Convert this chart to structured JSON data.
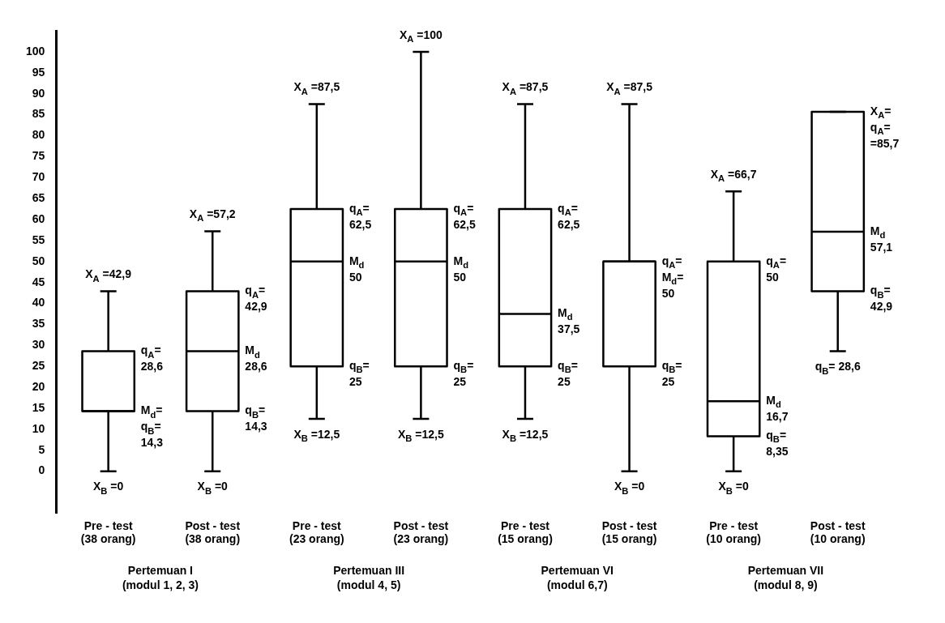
{
  "chart_data": {
    "type": "box",
    "color": "#000000",
    "categories": [
      "Pre - test\n(38 orang)",
      "Post - test\n(38 orang)",
      "Pre - test\n(23 orang)",
      "Post - test\n(23 orang)",
      "Pre - test\n(15 orang)",
      "Post - test\n(15 orang)",
      "Pre - test\n(10 orang)",
      "Post - test\n(10 orang)"
    ],
    "boxes": [
      {
        "low": 0,
        "q1": 14.3,
        "median": 14.3,
        "q3": 28.6,
        "high": 42.9
      },
      {
        "low": 0,
        "q1": 14.3,
        "median": 28.6,
        "q3": 42.9,
        "high": 57.2
      },
      {
        "low": 12.5,
        "q1": 25,
        "median": 50,
        "q3": 62.5,
        "high": 87.5
      },
      {
        "low": 12.5,
        "q1": 25,
        "median": 50,
        "q3": 62.5,
        "high": 100
      },
      {
        "low": 12.5,
        "q1": 25,
        "median": 37.5,
        "q3": 62.5,
        "high": 87.5
      },
      {
        "low": 0,
        "q1": 25,
        "median": 50,
        "q3": 50,
        "high": 87.5
      },
      {
        "low": 0,
        "q1": 8.35,
        "median": 16.7,
        "q3": 50,
        "high": 66.7
      },
      {
        "low": 28.6,
        "q1": 42.9,
        "median": 57.1,
        "q3": 85.7,
        "high": 85.7
      }
    ],
    "ylim": [
      -10,
      105
    ],
    "yticks": [
      0,
      5,
      10,
      15,
      20,
      25,
      30,
      35,
      40,
      45,
      50,
      55,
      60,
      65,
      70,
      75,
      80,
      85,
      90,
      95,
      100
    ],
    "grid": false,
    "legend": false,
    "annotations": [
      {
        "text": "X$_{A}$ =42,9",
        "x": "Pre - test\n(38 orang)",
        "y": 42.9
      },
      {
        "text": "q$_{A}$=\n28,6",
        "x": "Pre - test\n(38 orang)",
        "y": 28.6
      },
      {
        "text": "M$_{d}$=\nq$_{B}$=\n14,3",
        "x": "Pre - test\n(38 orang)",
        "y": 14.3
      },
      {
        "text": "X$_{B}$ =0",
        "x": "Pre - test\n(38 orang)",
        "y": 0
      },
      {
        "text": "X$_{A}$ =57,2",
        "x": "Post - test\n(38 orang)",
        "y": 57.2
      },
      {
        "text": "q$_{A}$=\n42,9",
        "x": "Post - test\n(38 orang)",
        "y": 42.9
      },
      {
        "text": "M$_{d}$\n28,6",
        "x": "Post - test\n(38 orang)",
        "y": 28.6
      },
      {
        "text": "q$_{B}$=\n14,3",
        "x": "Post - test\n(38 orang)",
        "y": 14.3
      },
      {
        "text": "X$_{B}$ =0",
        "x": "Post - test\n(38 orang)",
        "y": 0
      },
      {
        "text": "X$_{A}$ =87,5",
        "x": "Pre - test\n(23 orang)",
        "y": 87.5
      },
      {
        "text": "q$_{A}$=\n62,5",
        "x": "Pre - test\n(23 orang)",
        "y": 62.5
      },
      {
        "text": "M$_{d}$\n50",
        "x": "Pre - test\n(23 orang)",
        "y": 50
      },
      {
        "text": "q$_{B}$=\n25",
        "x": "Pre - test\n(23 orang)",
        "y": 25
      },
      {
        "text": "X$_{B}$ =12,5",
        "x": "Pre - test\n(23 orang)",
        "y": 12.5
      },
      {
        "text": "X$_{A}$ =100",
        "x": "Post - test\n(23 orang)",
        "y": 100
      },
      {
        "text": "q$_{A}$=\n62,5",
        "x": "Post - test\n(23 orang)",
        "y": 62.5
      },
      {
        "text": "M$_{d}$\n50",
        "x": "Post - test\n(23 orang)",
        "y": 50
      },
      {
        "text": "q$_{B}$=\n25",
        "x": "Post - test\n(23 orang)",
        "y": 25
      },
      {
        "text": "X$_{B}$ =12,5",
        "x": "Post - test\n(23 orang)",
        "y": 12.5
      },
      {
        "text": "X$_{A}$ =87,5",
        "x": "Pre - test\n(15 orang)",
        "y": 87.5
      },
      {
        "text": "q$_{A}$=\n62,5",
        "x": "Pre - test\n(15 orang)",
        "y": 62.5
      },
      {
        "text": "M$_{d}$\n37,5",
        "x": "Pre - test\n(15 orang)",
        "y": 37.5
      },
      {
        "text": "q$_{B}$=\n25",
        "x": "Pre - test\n(15 orang)",
        "y": 25
      },
      {
        "text": "X$_{B}$ =12,5",
        "x": "Pre - test\n(15 orang)",
        "y": 12.5
      },
      {
        "text": "X$_{A}$ =87,5",
        "x": "Post - test\n(15 orang)",
        "y": 87.5
      },
      {
        "text": "q$_{A}$=\nM$_{d}$=\n50",
        "x": "Post - test\n(15 orang)",
        "y": 50
      },
      {
        "text": "q$_{B}$=\n25",
        "x": "Post - test\n(15 orang)",
        "y": 25
      },
      {
        "text": "X$_{B}$ =0",
        "x": "Post - test\n(15 orang)",
        "y": 0
      },
      {
        "text": "X$_{A}$ =66,7",
        "x": "Pre - test\n(10 orang)",
        "y": 66.7
      },
      {
        "text": "q$_{A}$=\n50",
        "x": "Pre - test\n(10 orang)",
        "y": 50
      },
      {
        "text": "M$_{d}$\n16,7",
        "x": "Pre - test\n(10 orang)",
        "y": 16.7
      },
      {
        "text": "q$_{B}$=\n8,35",
        "x": "Pre - test\n(10 orang)",
        "y": 8.35
      },
      {
        "text": "X$_{B}$ =0",
        "x": "Pre - test\n(10 orang)",
        "y": 0
      },
      {
        "text": "X$_{A}$=\nq$_{A}$=\n=85,7",
        "x": "Post - test\n(10 orang)",
        "y": 85.7
      },
      {
        "text": "M$_{d}$\n57,1",
        "x": "Post - test\n(10 orang)",
        "y": 57.1
      },
      {
        "text": "q$_{B}$=\n42,9",
        "x": "Post - test\n(10 orang)",
        "y": 42.9
      },
      {
        "text": "q$_{B}$= 28,6",
        "x": "Post - test\n(10 orang)",
        "y": 28.6
      },
      "Pertemuan I\n(modul 1, 2, 3)",
      "Pertemuan III\n(modul 4, 5)",
      "Pertemuan VI\n(modul 6,7)",
      "Pertemuan VII\n(modul 8, 9)"
    ]
  }
}
